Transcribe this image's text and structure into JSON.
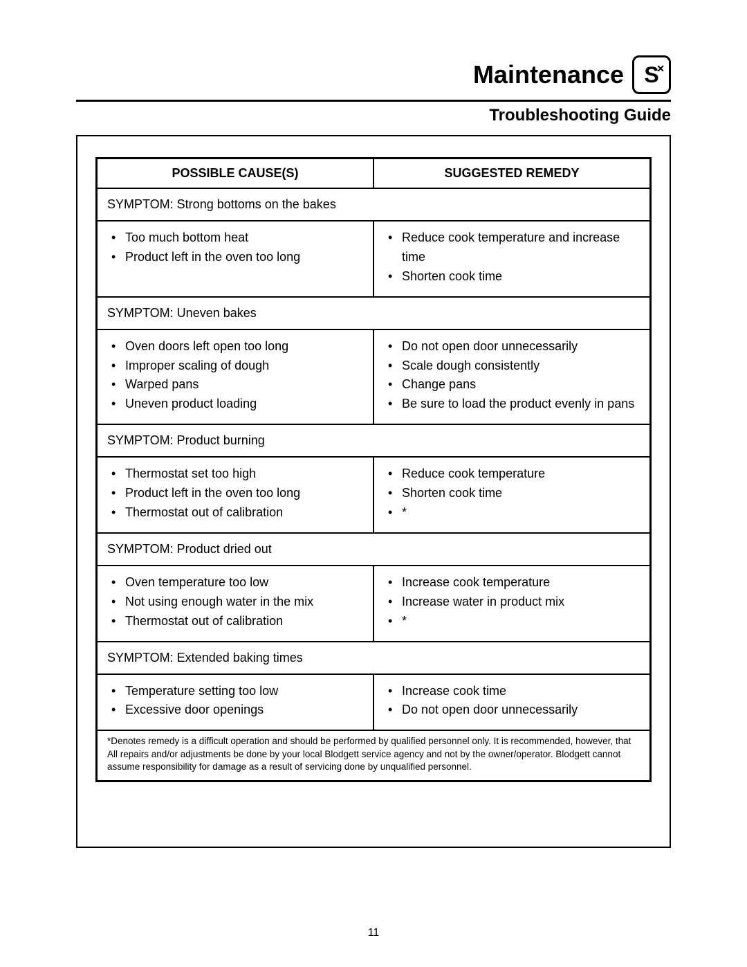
{
  "header": {
    "section_title": "Maintenance",
    "logo_letter": "S",
    "logo_corner": "✕"
  },
  "subtitle": "Troubleshooting Guide",
  "columns": {
    "causes": "POSSIBLE CAUSE(S)",
    "remedy": "SUGGESTED REMEDY"
  },
  "sections": [
    {
      "symptom": "SYMPTOM: Strong bottoms on the bakes",
      "causes": [
        "Too much bottom heat",
        "Product left in the oven too long"
      ],
      "remedies": [
        "Reduce cook temperature and increase time",
        "Shorten cook time"
      ]
    },
    {
      "symptom": "SYMPTOM: Uneven bakes",
      "causes": [
        "Oven doors left open too long",
        "Improper scaling of dough",
        "Warped pans",
        "Uneven product loading"
      ],
      "remedies": [
        "Do not open door unnecessarily",
        "Scale dough consistently",
        "Change pans",
        "Be sure to load the product evenly in pans"
      ]
    },
    {
      "symptom": "SYMPTOM: Product burning",
      "causes": [
        "Thermostat set too high",
        "Product left in the oven too long",
        "Thermostat out of calibration"
      ],
      "remedies": [
        "Reduce cook temperature",
        "Shorten cook time",
        "*"
      ]
    },
    {
      "symptom": "SYMPTOM: Product dried out",
      "causes": [
        "Oven temperature too low",
        "Not using enough water in the mix",
        "Thermostat out of calibration"
      ],
      "remedies": [
        "Increase cook temperature",
        "Increase water in product mix",
        "*"
      ]
    },
    {
      "symptom": "SYMPTOM: Extended baking times",
      "causes": [
        "Temperature setting too low",
        "Excessive door openings"
      ],
      "remedies": [
        "Increase cook time",
        "Do not open door unnecessarily"
      ]
    }
  ],
  "footnote": "*Denotes remedy is a difficult operation and should be performed by qualified personnel only. It is recommended, however, that All repairs and/or adjustments be done by your local Blodgett service agency and not by the owner/operator. Blodgett cannot assume responsibility for damage as a result of servicing done by unqualified personnel.",
  "page_number": "11",
  "style": {
    "page_bg": "#ffffff",
    "text_color": "#000000",
    "border_color": "#000000",
    "title_fontsize": 36,
    "subtitle_fontsize": 24,
    "header_fontsize": 18,
    "body_fontsize": 18,
    "footnote_fontsize": 13.5,
    "outer_border_width": 2,
    "table_border_width": 2,
    "table_outer_border_width": 3
  }
}
